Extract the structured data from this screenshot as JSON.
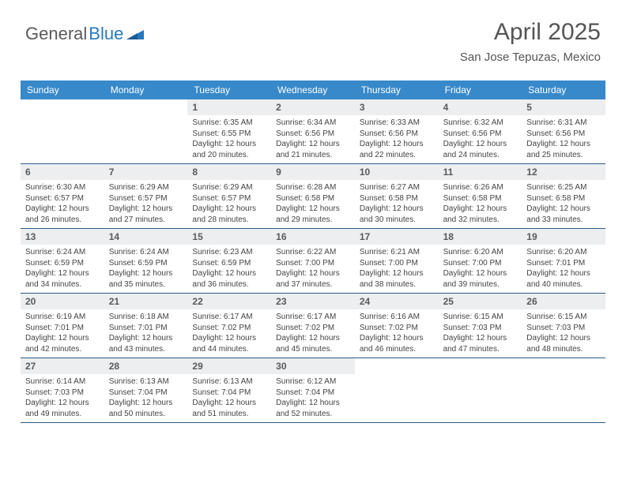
{
  "logo": {
    "part1": "General",
    "part2": "Blue"
  },
  "title": "April 2025",
  "location": "San Jose Tepuzas, Mexico",
  "colors": {
    "header_bg": "#3789ca",
    "header_text": "#ffffff",
    "daynum_bg": "#eceef0",
    "border": "#2c5c86",
    "logo_dark": "#5a5a5a",
    "logo_blue": "#2878bd"
  },
  "weekdays": [
    "Sunday",
    "Monday",
    "Tuesday",
    "Wednesday",
    "Thursday",
    "Friday",
    "Saturday"
  ],
  "labels": {
    "sunrise": "Sunrise: ",
    "sunset": "Sunset: ",
    "daylight_prefix": "Daylight: "
  },
  "weeks": [
    [
      null,
      null,
      {
        "n": "1",
        "sunrise": "6:35 AM",
        "sunset": "6:55 PM",
        "daylight": "12 hours and 20 minutes."
      },
      {
        "n": "2",
        "sunrise": "6:34 AM",
        "sunset": "6:56 PM",
        "daylight": "12 hours and 21 minutes."
      },
      {
        "n": "3",
        "sunrise": "6:33 AM",
        "sunset": "6:56 PM",
        "daylight": "12 hours and 22 minutes."
      },
      {
        "n": "4",
        "sunrise": "6:32 AM",
        "sunset": "6:56 PM",
        "daylight": "12 hours and 24 minutes."
      },
      {
        "n": "5",
        "sunrise": "6:31 AM",
        "sunset": "6:56 PM",
        "daylight": "12 hours and 25 minutes."
      }
    ],
    [
      {
        "n": "6",
        "sunrise": "6:30 AM",
        "sunset": "6:57 PM",
        "daylight": "12 hours and 26 minutes."
      },
      {
        "n": "7",
        "sunrise": "6:29 AM",
        "sunset": "6:57 PM",
        "daylight": "12 hours and 27 minutes."
      },
      {
        "n": "8",
        "sunrise": "6:29 AM",
        "sunset": "6:57 PM",
        "daylight": "12 hours and 28 minutes."
      },
      {
        "n": "9",
        "sunrise": "6:28 AM",
        "sunset": "6:58 PM",
        "daylight": "12 hours and 29 minutes."
      },
      {
        "n": "10",
        "sunrise": "6:27 AM",
        "sunset": "6:58 PM",
        "daylight": "12 hours and 30 minutes."
      },
      {
        "n": "11",
        "sunrise": "6:26 AM",
        "sunset": "6:58 PM",
        "daylight": "12 hours and 32 minutes."
      },
      {
        "n": "12",
        "sunrise": "6:25 AM",
        "sunset": "6:58 PM",
        "daylight": "12 hours and 33 minutes."
      }
    ],
    [
      {
        "n": "13",
        "sunrise": "6:24 AM",
        "sunset": "6:59 PM",
        "daylight": "12 hours and 34 minutes."
      },
      {
        "n": "14",
        "sunrise": "6:24 AM",
        "sunset": "6:59 PM",
        "daylight": "12 hours and 35 minutes."
      },
      {
        "n": "15",
        "sunrise": "6:23 AM",
        "sunset": "6:59 PM",
        "daylight": "12 hours and 36 minutes."
      },
      {
        "n": "16",
        "sunrise": "6:22 AM",
        "sunset": "7:00 PM",
        "daylight": "12 hours and 37 minutes."
      },
      {
        "n": "17",
        "sunrise": "6:21 AM",
        "sunset": "7:00 PM",
        "daylight": "12 hours and 38 minutes."
      },
      {
        "n": "18",
        "sunrise": "6:20 AM",
        "sunset": "7:00 PM",
        "daylight": "12 hours and 39 minutes."
      },
      {
        "n": "19",
        "sunrise": "6:20 AM",
        "sunset": "7:01 PM",
        "daylight": "12 hours and 40 minutes."
      }
    ],
    [
      {
        "n": "20",
        "sunrise": "6:19 AM",
        "sunset": "7:01 PM",
        "daylight": "12 hours and 42 minutes."
      },
      {
        "n": "21",
        "sunrise": "6:18 AM",
        "sunset": "7:01 PM",
        "daylight": "12 hours and 43 minutes."
      },
      {
        "n": "22",
        "sunrise": "6:17 AM",
        "sunset": "7:02 PM",
        "daylight": "12 hours and 44 minutes."
      },
      {
        "n": "23",
        "sunrise": "6:17 AM",
        "sunset": "7:02 PM",
        "daylight": "12 hours and 45 minutes."
      },
      {
        "n": "24",
        "sunrise": "6:16 AM",
        "sunset": "7:02 PM",
        "daylight": "12 hours and 46 minutes."
      },
      {
        "n": "25",
        "sunrise": "6:15 AM",
        "sunset": "7:03 PM",
        "daylight": "12 hours and 47 minutes."
      },
      {
        "n": "26",
        "sunrise": "6:15 AM",
        "sunset": "7:03 PM",
        "daylight": "12 hours and 48 minutes."
      }
    ],
    [
      {
        "n": "27",
        "sunrise": "6:14 AM",
        "sunset": "7:03 PM",
        "daylight": "12 hours and 49 minutes."
      },
      {
        "n": "28",
        "sunrise": "6:13 AM",
        "sunset": "7:04 PM",
        "daylight": "12 hours and 50 minutes."
      },
      {
        "n": "29",
        "sunrise": "6:13 AM",
        "sunset": "7:04 PM",
        "daylight": "12 hours and 51 minutes."
      },
      {
        "n": "30",
        "sunrise": "6:12 AM",
        "sunset": "7:04 PM",
        "daylight": "12 hours and 52 minutes."
      },
      null,
      null,
      null
    ]
  ]
}
